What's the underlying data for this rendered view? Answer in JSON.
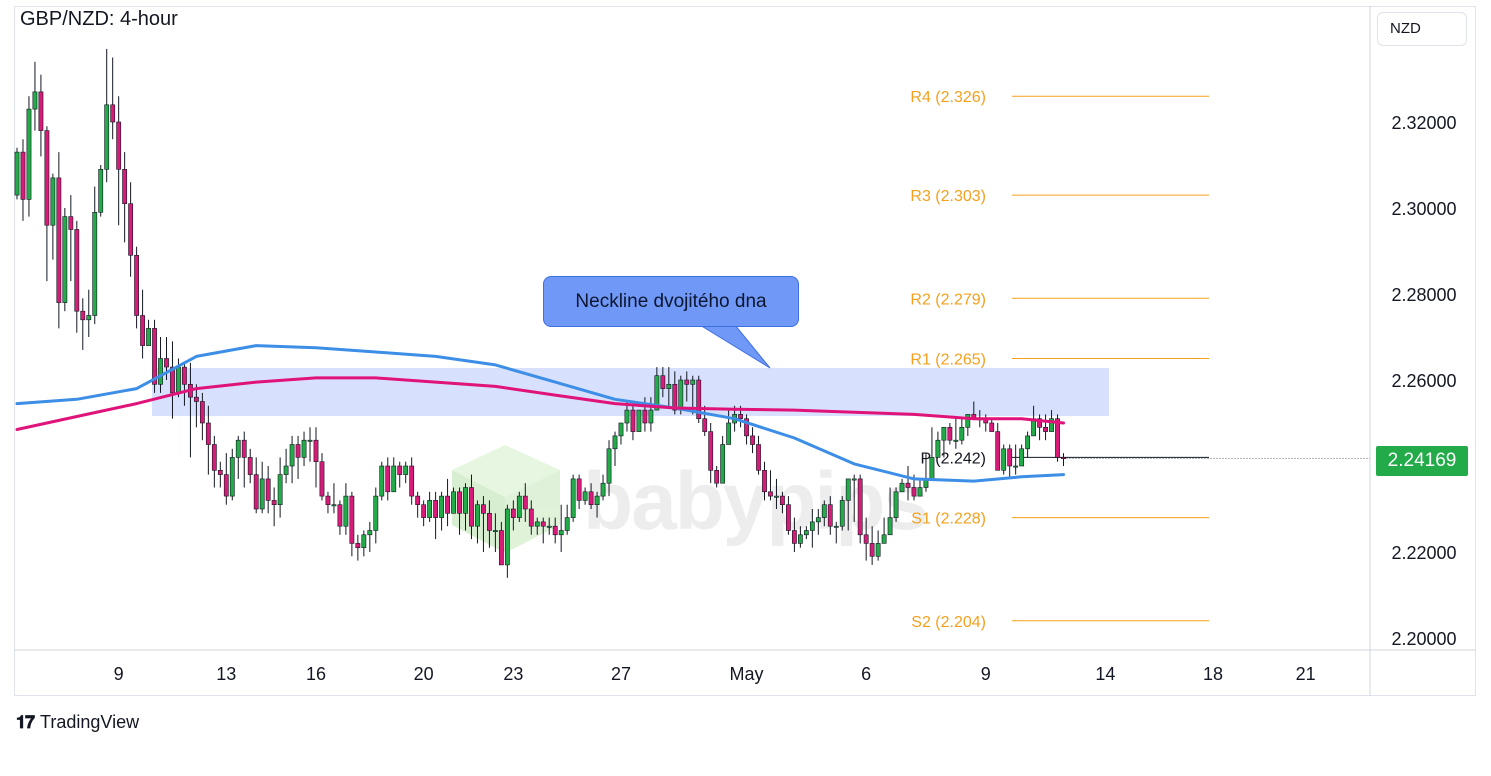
{
  "chart_title": "GBP/NZD: 4-hour",
  "currency_button": "NZD",
  "current_price": "2.24169",
  "callout_text": "Neckline dvojitého dna",
  "footer_brand": "TradingView",
  "watermark_text": "babypips",
  "colors": {
    "up_candle": "#22ab48",
    "down_candle": "#d81b79",
    "ma_fast": "#3d8ee6",
    "ma_slow": "#e0137a",
    "pivot_lines": "#f5a01d",
    "pivot_line_P": "#131722",
    "neckline_zone": "#c9d6fb",
    "callout_bg": "#6f98f7"
  },
  "chart_data": {
    "type": "candlestick",
    "title": "GBP/NZD: 4-hour",
    "ylim": [
      2.195,
      2.348
    ],
    "y_ticks": [
      "2.32000",
      "2.30000",
      "2.28000",
      "2.26000",
      "2.24169",
      "2.22000",
      "2.20000"
    ],
    "x_ticks": [
      "9",
      "13",
      "16",
      "20",
      "23",
      "27",
      "May",
      "6",
      "9",
      "14",
      "18",
      "21"
    ],
    "pivot_levels": [
      {
        "label": "R4 (2.326)",
        "value": 2.326
      },
      {
        "label": "R3 (2.303)",
        "value": 2.303
      },
      {
        "label": "R2 (2.279)",
        "value": 2.279
      },
      {
        "label": "R1 (2.265)",
        "value": 2.265
      },
      {
        "label": "P (2.242)",
        "value": 2.242
      },
      {
        "label": "S1 (2.228)",
        "value": 2.228
      },
      {
        "label": "S2 (2.204)",
        "value": 2.204
      }
    ],
    "neckline_zone": [
      2.2515,
      2.2625
    ],
    "candles": [
      [
        2.303,
        2.313,
        2.314,
        2.302
      ],
      [
        2.313,
        2.302,
        2.316,
        2.297
      ],
      [
        2.302,
        2.323,
        2.326,
        2.298
      ],
      [
        2.323,
        2.327,
        2.334,
        2.318
      ],
      [
        2.327,
        2.318,
        2.331,
        2.312
      ],
      [
        2.318,
        2.296,
        2.319,
        2.283
      ],
      [
        2.296,
        2.307,
        2.308,
        2.288
      ],
      [
        2.307,
        2.278,
        2.313,
        2.272
      ],
      [
        2.278,
        2.298,
        2.3,
        2.276
      ],
      [
        2.298,
        2.295,
        2.303,
        2.283
      ],
      [
        2.295,
        2.276,
        2.297,
        2.271
      ],
      [
        2.276,
        2.274,
        2.279,
        2.267
      ],
      [
        2.274,
        2.275,
        2.281,
        2.27
      ],
      [
        2.275,
        2.299,
        2.305,
        2.273
      ],
      [
        2.299,
        2.309,
        2.31,
        2.298
      ],
      [
        2.309,
        2.324,
        2.337,
        2.306
      ],
      [
        2.324,
        2.32,
        2.335,
        2.316
      ],
      [
        2.32,
        2.309,
        2.326,
        2.296
      ],
      [
        2.309,
        2.301,
        2.313,
        2.292
      ],
      [
        2.301,
        2.289,
        2.306,
        2.284
      ],
      [
        2.289,
        2.275,
        2.291,
        2.272
      ],
      [
        2.275,
        2.268,
        2.281,
        2.265
      ],
      [
        2.268,
        2.272,
        2.274,
        2.268
      ],
      [
        2.272,
        2.259,
        2.274,
        2.257
      ],
      [
        2.259,
        2.265,
        2.27,
        2.257
      ],
      [
        2.265,
        2.263,
        2.27,
        2.26
      ],
      [
        2.263,
        2.257,
        2.269,
        2.251
      ],
      [
        2.257,
        2.263,
        2.265,
        2.256
      ],
      [
        2.263,
        2.259,
        2.264,
        2.254
      ],
      [
        2.259,
        2.256,
        2.264,
        2.242
      ],
      [
        2.256,
        2.255,
        2.259,
        2.249
      ],
      [
        2.255,
        2.25,
        2.257,
        2.246
      ],
      [
        2.25,
        2.245,
        2.254,
        2.238
      ],
      [
        2.245,
        2.239,
        2.247,
        2.235
      ],
      [
        2.239,
        2.238,
        2.241,
        2.235
      ],
      [
        2.238,
        2.233,
        2.243,
        2.231
      ],
      [
        2.233,
        2.242,
        2.244,
        2.232
      ],
      [
        2.242,
        2.246,
        2.247,
        2.237
      ],
      [
        2.246,
        2.242,
        2.248,
        2.235
      ],
      [
        2.242,
        2.238,
        2.244,
        2.236
      ],
      [
        2.238,
        2.23,
        2.242,
        2.229
      ],
      [
        2.23,
        2.237,
        2.241,
        2.229
      ],
      [
        2.237,
        2.232,
        2.24,
        2.229
      ],
      [
        2.232,
        2.231,
        2.235,
        2.226
      ],
      [
        2.231,
        2.238,
        2.242,
        2.228
      ],
      [
        2.238,
        2.24,
        2.244,
        2.236
      ],
      [
        2.24,
        2.245,
        2.247,
        2.236
      ],
      [
        2.245,
        2.242,
        2.247,
        2.237
      ],
      [
        2.242,
        2.246,
        2.248,
        2.24
      ],
      [
        2.246,
        2.246,
        2.249,
        2.241
      ],
      [
        2.246,
        2.241,
        2.249,
        2.235
      ],
      [
        2.241,
        2.233,
        2.243,
        2.232
      ],
      [
        2.233,
        2.231,
        2.234,
        2.229
      ],
      [
        2.231,
        2.231,
        2.236,
        2.229
      ],
      [
        2.231,
        2.226,
        2.232,
        2.224
      ],
      [
        2.226,
        2.233,
        2.236,
        2.224
      ],
      [
        2.233,
        2.222,
        2.234,
        2.219
      ],
      [
        2.222,
        2.221,
        2.224,
        2.218
      ],
      [
        2.221,
        2.224,
        2.225,
        2.219
      ],
      [
        2.224,
        2.225,
        2.227,
        2.22
      ],
      [
        2.225,
        2.233,
        2.235,
        2.222
      ],
      [
        2.233,
        2.24,
        2.241,
        2.232
      ],
      [
        2.24,
        2.234,
        2.242,
        2.232
      ],
      [
        2.234,
        2.24,
        2.242,
        2.234
      ],
      [
        2.24,
        2.238,
        2.241,
        2.235
      ],
      [
        2.238,
        2.24,
        2.241,
        2.236
      ],
      [
        2.24,
        2.233,
        2.242,
        2.231
      ],
      [
        2.233,
        2.231,
        2.234,
        2.228
      ],
      [
        2.231,
        2.228,
        2.232,
        2.226
      ],
      [
        2.228,
        2.232,
        2.234,
        2.227
      ],
      [
        2.232,
        2.228,
        2.234,
        2.223
      ],
      [
        2.228,
        2.233,
        2.234,
        2.225
      ],
      [
        2.233,
        2.229,
        2.237,
        2.226
      ],
      [
        2.229,
        2.234,
        2.235,
        2.23
      ],
      [
        2.234,
        2.229,
        2.235,
        2.224
      ],
      [
        2.229,
        2.235,
        2.236,
        2.225
      ],
      [
        2.235,
        2.226,
        2.238,
        2.223
      ],
      [
        2.226,
        2.231,
        2.232,
        2.222
      ],
      [
        2.231,
        2.229,
        2.233,
        2.22
      ],
      [
        2.229,
        2.225,
        2.232,
        2.221
      ],
      [
        2.225,
        2.225,
        2.229,
        2.22
      ],
      [
        2.225,
        2.217,
        2.227,
        2.218
      ],
      [
        2.217,
        2.23,
        2.231,
        2.214
      ],
      [
        2.23,
        2.228,
        2.232,
        2.225
      ],
      [
        2.228,
        2.233,
        2.234,
        2.227
      ],
      [
        2.233,
        2.23,
        2.236,
        2.227
      ],
      [
        2.23,
        2.226,
        2.232,
        2.224
      ],
      [
        2.226,
        2.227,
        2.228,
        2.224
      ],
      [
        2.227,
        2.226,
        2.228,
        2.222
      ],
      [
        2.226,
        2.226,
        2.228,
        2.224
      ],
      [
        2.226,
        2.224,
        2.228,
        2.222
      ],
      [
        2.224,
        2.225,
        2.231,
        2.22
      ],
      [
        2.225,
        2.228,
        2.231,
        2.224
      ],
      [
        2.228,
        2.237,
        2.238,
        2.227
      ],
      [
        2.237,
        2.232,
        2.238,
        2.23
      ],
      [
        2.232,
        2.234,
        2.235,
        2.231
      ],
      [
        2.234,
        2.231,
        2.236,
        2.23
      ],
      [
        2.231,
        2.233,
        2.234,
        2.228
      ],
      [
        2.233,
        2.236,
        2.238,
        2.232
      ],
      [
        2.236,
        2.244,
        2.246,
        2.233
      ],
      [
        2.244,
        2.247,
        2.248,
        2.24
      ],
      [
        2.247,
        2.25,
        2.25,
        2.245
      ],
      [
        2.25,
        2.253,
        2.255,
        2.248
      ],
      [
        2.253,
        2.248,
        2.254,
        2.246
      ],
      [
        2.248,
        2.253,
        2.253,
        2.248
      ],
      [
        2.253,
        2.25,
        2.256,
        2.248
      ],
      [
        2.25,
        2.253,
        2.256,
        2.248
      ],
      [
        2.253,
        2.261,
        2.263,
        2.253
      ],
      [
        2.261,
        2.258,
        2.263,
        2.256
      ],
      [
        2.258,
        2.259,
        2.263,
        2.254
      ],
      [
        2.259,
        2.253,
        2.262,
        2.252
      ],
      [
        2.253,
        2.26,
        2.261,
        2.252
      ],
      [
        2.26,
        2.259,
        2.262,
        2.255
      ],
      [
        2.259,
        2.26,
        2.261,
        2.252
      ],
      [
        2.26,
        2.251,
        2.261,
        2.25
      ],
      [
        2.251,
        2.248,
        2.254,
        2.247
      ],
      [
        2.248,
        2.239,
        2.25,
        2.236
      ],
      [
        2.239,
        2.236,
        2.24,
        2.235
      ],
      [
        2.236,
        2.245,
        2.247,
        2.237
      ],
      [
        2.245,
        2.25,
        2.253,
        2.249
      ],
      [
        2.25,
        2.252,
        2.254,
        2.248
      ],
      [
        2.252,
        2.251,
        2.254,
        2.249
      ],
      [
        2.251,
        2.247,
        2.252,
        2.245
      ],
      [
        2.247,
        2.245,
        2.249,
        2.243
      ],
      [
        2.245,
        2.239,
        2.247,
        2.238
      ],
      [
        2.239,
        2.234,
        2.241,
        2.232
      ],
      [
        2.234,
        2.233,
        2.239,
        2.232
      ],
      [
        2.233,
        2.233,
        2.237,
        2.23
      ],
      [
        2.233,
        2.231,
        2.234,
        2.229
      ],
      [
        2.231,
        2.225,
        2.233,
        2.224
      ],
      [
        2.225,
        2.222,
        2.228,
        2.22
      ],
      [
        2.222,
        2.224,
        2.226,
        2.221
      ],
      [
        2.224,
        2.225,
        2.226,
        2.223
      ],
      [
        2.225,
        2.227,
        2.23,
        2.221
      ],
      [
        2.227,
        2.228,
        2.23,
        2.224
      ],
      [
        2.228,
        2.231,
        2.232,
        2.226
      ],
      [
        2.231,
        2.226,
        2.233,
        2.224
      ],
      [
        2.226,
        2.226,
        2.227,
        2.222
      ],
      [
        2.226,
        2.232,
        2.233,
        2.225
      ],
      [
        2.232,
        2.237,
        2.237,
        2.225
      ],
      [
        2.237,
        2.237,
        2.238,
        2.227
      ],
      [
        2.237,
        2.224,
        2.238,
        2.222
      ],
      [
        2.224,
        2.222,
        2.228,
        2.218
      ],
      [
        2.222,
        2.219,
        2.226,
        2.217
      ],
      [
        2.219,
        2.222,
        2.225,
        2.218
      ],
      [
        2.222,
        2.224,
        2.228,
        2.222
      ],
      [
        2.224,
        2.228,
        2.235,
        2.224
      ],
      [
        2.228,
        2.234,
        2.235,
        2.227
      ],
      [
        2.234,
        2.236,
        2.237,
        2.234
      ],
      [
        2.236,
        2.235,
        2.24,
        2.232
      ],
      [
        2.235,
        2.233,
        2.238,
        2.232
      ],
      [
        2.233,
        2.235,
        2.237,
        2.233
      ],
      [
        2.235,
        2.237,
        2.243,
        2.234
      ],
      [
        2.237,
        2.242,
        2.249,
        2.237
      ],
      [
        2.242,
        2.246,
        2.248,
        2.242
      ],
      [
        2.246,
        2.249,
        2.249,
        2.242
      ],
      [
        2.249,
        2.246,
        2.25,
        2.245
      ],
      [
        2.246,
        2.246,
        2.251,
        2.244
      ],
      [
        2.246,
        2.249,
        2.251,
        2.245
      ],
      [
        2.249,
        2.252,
        2.252,
        2.247
      ],
      [
        2.252,
        2.251,
        2.255,
        2.251
      ],
      [
        2.251,
        2.251,
        2.253,
        2.249
      ],
      [
        2.251,
        2.25,
        2.252,
        2.248
      ],
      [
        2.25,
        2.248,
        2.251,
        2.248
      ],
      [
        2.248,
        2.239,
        2.25,
        2.239
      ],
      [
        2.239,
        2.244,
        2.245,
        2.238
      ],
      [
        2.244,
        2.24,
        2.245,
        2.237
      ],
      [
        2.24,
        2.24,
        2.245,
        2.238
      ],
      [
        2.24,
        2.244,
        2.245,
        2.24
      ],
      [
        2.244,
        2.247,
        2.248,
        2.242
      ],
      [
        2.247,
        2.251,
        2.254,
        2.247
      ],
      [
        2.251,
        2.249,
        2.252,
        2.246
      ],
      [
        2.249,
        2.248,
        2.252,
        2.246
      ],
      [
        2.248,
        2.251,
        2.253,
        2.248
      ],
      [
        2.251,
        2.242,
        2.252,
        2.241
      ],
      [
        2.242,
        2.2417,
        2.243,
        2.24
      ]
    ],
    "series": [
      {
        "name": "MA (fast)",
        "points": [
          [
            0,
            2.2545
          ],
          [
            10,
            2.2555
          ],
          [
            20,
            2.258
          ],
          [
            30,
            2.2655
          ],
          [
            40,
            2.268
          ],
          [
            50,
            2.2675
          ],
          [
            60,
            2.2665
          ],
          [
            70,
            2.2655
          ],
          [
            80,
            2.2635
          ],
          [
            90,
            2.2595
          ],
          [
            100,
            2.2555
          ],
          [
            110,
            2.2535
          ],
          [
            120,
            2.251
          ],
          [
            130,
            2.2465
          ],
          [
            140,
            2.2405
          ],
          [
            150,
            2.237
          ],
          [
            160,
            2.2365
          ],
          [
            168,
            2.2375
          ],
          [
            175,
            2.238
          ]
        ]
      },
      {
        "name": "MA (slow)",
        "points": [
          [
            0,
            2.2485
          ],
          [
            10,
            2.2515
          ],
          [
            20,
            2.2545
          ],
          [
            30,
            2.258
          ],
          [
            40,
            2.2595
          ],
          [
            50,
            2.2605
          ],
          [
            60,
            2.2605
          ],
          [
            70,
            2.2595
          ],
          [
            80,
            2.2585
          ],
          [
            90,
            2.2565
          ],
          [
            100,
            2.2545
          ],
          [
            110,
            2.2535
          ],
          [
            120,
            2.2532
          ],
          [
            130,
            2.253
          ],
          [
            140,
            2.2525
          ],
          [
            150,
            2.252
          ],
          [
            160,
            2.251
          ],
          [
            168,
            2.251
          ],
          [
            175,
            2.25
          ]
        ]
      }
    ]
  }
}
